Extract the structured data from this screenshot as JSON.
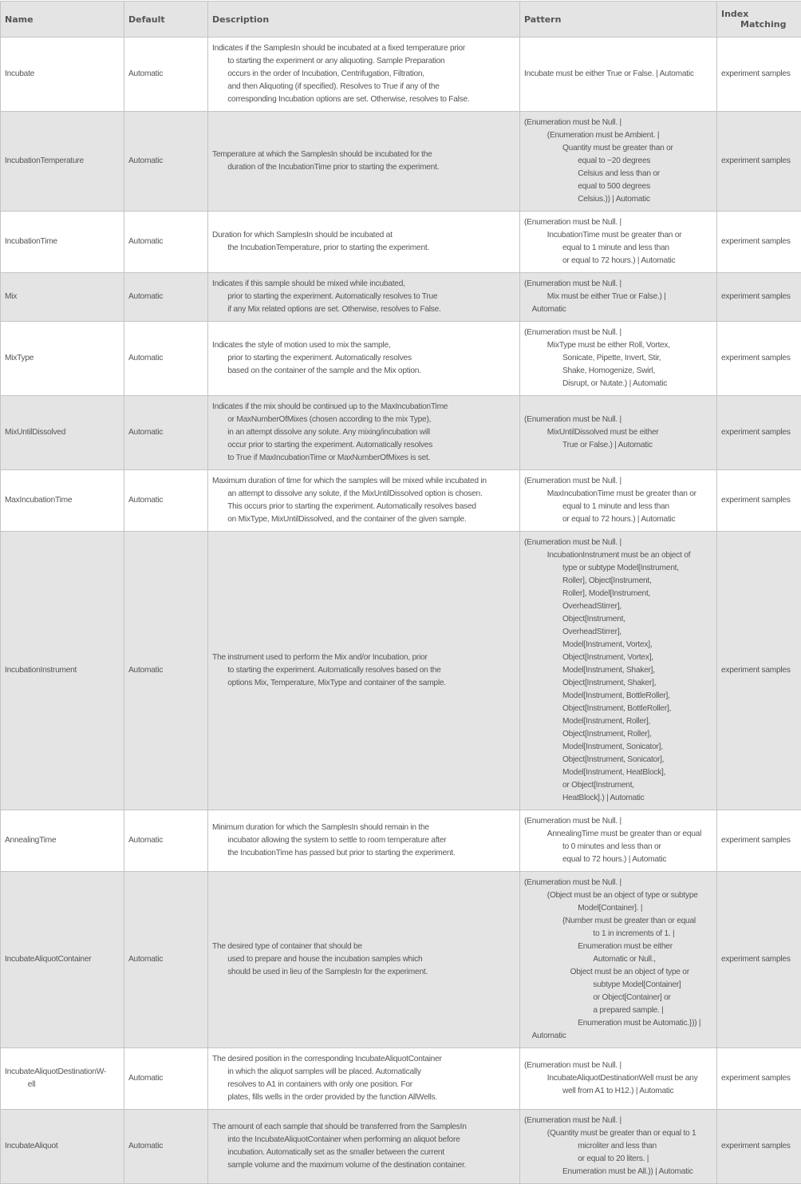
{
  "header": {
    "name": "Name",
    "default": "Default",
    "description": "Description",
    "pattern": "Pattern",
    "index_matching": [
      "Index",
      "Matching"
    ]
  },
  "colors": {
    "header_bg": "#e4e4e4",
    "alt_row_bg": "#e4e4e4",
    "text": "#555555",
    "border": "#c4c4c4"
  },
  "rows": [
    {
      "name": [
        {
          "t": "Incubate",
          "i": 0
        }
      ],
      "default": "Automatic",
      "description": [
        {
          "t": "Indicates if the SamplesIn should be incubated at a fixed temperature prior",
          "i": 0
        },
        {
          "t": "to starting the experiment or any aliquoting. Sample Preparation",
          "i": 2
        },
        {
          "t": "occurs in the order of Incubation, Centrifugation, Filtration,",
          "i": 2
        },
        {
          "t": "and then Aliquoting (if specified).  Resolves to True if any of the",
          "i": 2
        },
        {
          "t": "corresponding Incubation options are set. Otherwise, resolves to False.",
          "i": 2
        }
      ],
      "pattern": [
        {
          "t": "Incubate must be either True or False. | Automatic",
          "i": 0
        }
      ],
      "index_matching": "experiment samples"
    },
    {
      "name": [
        {
          "t": "IncubationTemperature",
          "i": 0
        }
      ],
      "default": "Automatic",
      "description": [
        {
          "t": "Temperature at which the SamplesIn should be incubated for the",
          "i": 0
        },
        {
          "t": "duration of the IncubationTime prior to starting the experiment.",
          "i": 2
        }
      ],
      "pattern": [
        {
          "t": "(Enumeration must be Null. |",
          "i": 0
        },
        {
          "t": "(Enumeration must be Ambient. |",
          "i": 3
        },
        {
          "t": "Quantity must be greater than or",
          "i": 5
        },
        {
          "t": "equal to −20 degrees",
          "i": 7
        },
        {
          "t": "Celsius and less than or",
          "i": 7
        },
        {
          "t": "equal to 500 degrees",
          "i": 7
        },
        {
          "t": "Celsius.)) | Automatic",
          "i": 7
        }
      ],
      "index_matching": "experiment samples"
    },
    {
      "name": [
        {
          "t": "IncubationTime",
          "i": 0
        }
      ],
      "default": "Automatic",
      "description": [
        {
          "t": "Duration for which SamplesIn should be incubated at",
          "i": 0
        },
        {
          "t": "the IncubationTemperature, prior to starting the experiment.",
          "i": 2
        }
      ],
      "pattern": [
        {
          "t": "(Enumeration must be Null. |",
          "i": 0
        },
        {
          "t": "IncubationTime must be greater than or",
          "i": 3
        },
        {
          "t": "equal to 1 minute and less than",
          "i": 5
        },
        {
          "t": "or equal to 72 hours.) | Automatic",
          "i": 5
        }
      ],
      "index_matching": "experiment samples"
    },
    {
      "name": [
        {
          "t": "Mix",
          "i": 0
        }
      ],
      "default": "Automatic",
      "description": [
        {
          "t": "Indicates if this sample should be mixed while incubated,",
          "i": 0
        },
        {
          "t": "prior to starting the experiment.  Automatically resolves to True",
          "i": 2
        },
        {
          "t": "if any Mix related options are set. Otherwise, resolves to False.",
          "i": 2
        }
      ],
      "pattern": [
        {
          "t": "(Enumeration must be Null. |",
          "i": 0
        },
        {
          "t": "Mix must be either True or False.) |",
          "i": 3
        },
        {
          "t": "Automatic",
          "i": 1
        }
      ],
      "index_matching": "experiment samples"
    },
    {
      "name": [
        {
          "t": "MixType",
          "i": 0
        }
      ],
      "default": "Automatic",
      "description": [
        {
          "t": "Indicates the style of motion used to mix the sample,",
          "i": 0
        },
        {
          "t": "prior to starting the experiment.  Automatically resolves",
          "i": 2
        },
        {
          "t": "based on the container of the sample and the Mix option.",
          "i": 2
        }
      ],
      "pattern": [
        {
          "t": "(Enumeration must be Null. |",
          "i": 0
        },
        {
          "t": "MixType must be either Roll, Vortex,",
          "i": 3
        },
        {
          "t": "Sonicate, Pipette, Invert, Stir,",
          "i": 5
        },
        {
          "t": "Shake, Homogenize, Swirl,",
          "i": 5
        },
        {
          "t": "Disrupt, or Nutate.) | Automatic",
          "i": 5
        }
      ],
      "index_matching": "experiment samples"
    },
    {
      "name": [
        {
          "t": "MixUntilDissolved",
          "i": 0
        }
      ],
      "default": "Automatic",
      "description": [
        {
          "t": "Indicates if the mix should be continued up to the MaxIncubationTime",
          "i": 0
        },
        {
          "t": "or MaxNumberOfMixes (chosen according to the mix Type),",
          "i": 2
        },
        {
          "t": "in an attempt dissolve any solute. Any mixing/incubation will",
          "i": 2
        },
        {
          "t": "occur prior to starting the experiment.  Automatically resolves",
          "i": 2
        },
        {
          "t": "to True if MaxIncubationTime or MaxNumberOfMixes is set.",
          "i": 2
        }
      ],
      "pattern": [
        {
          "t": "(Enumeration must be Null. |",
          "i": 0
        },
        {
          "t": "MixUntilDissolved must be either",
          "i": 3
        },
        {
          "t": "True or False.) | Automatic",
          "i": 5
        }
      ],
      "index_matching": "experiment samples"
    },
    {
      "name": [
        {
          "t": "MaxIncubationTime",
          "i": 0
        }
      ],
      "default": "Automatic",
      "description": [
        {
          "t": "Maximum duration of time for which the samples will be mixed while incubated in",
          "i": 0
        },
        {
          "t": "an attempt to dissolve any solute, if the MixUntilDissolved option is chosen.",
          "i": 2
        },
        {
          "t": "This occurs prior to starting the experiment.  Automatically resolves based",
          "i": 2
        },
        {
          "t": "on MixType, MixUntilDissolved, and the container of the given sample.",
          "i": 2
        }
      ],
      "pattern": [
        {
          "t": "(Enumeration must be Null. |",
          "i": 0
        },
        {
          "t": "MaxIncubationTime must be greater than or",
          "i": 3
        },
        {
          "t": "equal to 1 minute and less than",
          "i": 5
        },
        {
          "t": "or equal to 72 hours.) | Automatic",
          "i": 5
        }
      ],
      "index_matching": "experiment samples"
    },
    {
      "name": [
        {
          "t": "IncubationInstrument",
          "i": 0
        }
      ],
      "default": "Automatic",
      "description": [
        {
          "t": "The instrument used to perform the Mix and/or Incubation, prior",
          "i": 0
        },
        {
          "t": "to starting the experiment.  Automatically resolves based on the",
          "i": 2
        },
        {
          "t": "options Mix, Temperature, MixType and container of the sample.",
          "i": 2
        }
      ],
      "pattern": [
        {
          "t": "(Enumeration must be Null. |",
          "i": 0
        },
        {
          "t": "IncubationInstrument must be an object of",
          "i": 3
        },
        {
          "t": "type or subtype Model[Instrument,",
          "i": 5
        },
        {
          "t": "Roller], Object[Instrument,",
          "i": 5
        },
        {
          "t": "Roller], Model[Instrument,",
          "i": 5
        },
        {
          "t": "OverheadStirrer],",
          "i": 5
        },
        {
          "t": "Object[Instrument,",
          "i": 5
        },
        {
          "t": "OverheadStirrer],",
          "i": 5
        },
        {
          "t": "Model[Instrument, Vortex],",
          "i": 5
        },
        {
          "t": "Object[Instrument, Vortex],",
          "i": 5
        },
        {
          "t": "Model[Instrument, Shaker],",
          "i": 5
        },
        {
          "t": "Object[Instrument, Shaker],",
          "i": 5
        },
        {
          "t": "Model[Instrument, BottleRoller],",
          "i": 5
        },
        {
          "t": "Object[Instrument, BottleRoller],",
          "i": 5
        },
        {
          "t": "Model[Instrument, Roller],",
          "i": 5
        },
        {
          "t": "Object[Instrument, Roller],",
          "i": 5
        },
        {
          "t": "Model[Instrument, Sonicator],",
          "i": 5
        },
        {
          "t": "Object[Instrument, Sonicator],",
          "i": 5
        },
        {
          "t": "Model[Instrument, HeatBlock],",
          "i": 5
        },
        {
          "t": "or Object[Instrument,",
          "i": 5
        },
        {
          "t": "HeatBlock].) | Automatic",
          "i": 5
        }
      ],
      "index_matching": "experiment samples"
    },
    {
      "name": [
        {
          "t": "AnnealingTime",
          "i": 0
        }
      ],
      "default": "Automatic",
      "description": [
        {
          "t": "Minimum duration for which the SamplesIn should remain in the",
          "i": 0
        },
        {
          "t": "incubator allowing the system to settle to room temperature after",
          "i": 2
        },
        {
          "t": "the IncubationTime has passed but prior to starting the experiment.",
          "i": 2
        }
      ],
      "pattern": [
        {
          "t": "(Enumeration must be Null. |",
          "i": 0
        },
        {
          "t": "AnnealingTime must be greater than or equal",
          "i": 3
        },
        {
          "t": "to 0 minutes and less than or",
          "i": 5
        },
        {
          "t": "equal to 72 hours.) | Automatic",
          "i": 5
        }
      ],
      "index_matching": "experiment samples"
    },
    {
      "name": [
        {
          "t": "IncubateAliquotContainer",
          "i": 0
        }
      ],
      "default": "Automatic",
      "description": [
        {
          "t": "The desired type of container that should be",
          "i": 0
        },
        {
          "t": "used to prepare and house the incubation samples which",
          "i": 2
        },
        {
          "t": "should be used in lieu of the SamplesIn for the experiment.",
          "i": 2
        }
      ],
      "pattern": [
        {
          "t": "(Enumeration must be Null. |",
          "i": 0
        },
        {
          "t": "(Object must be an object of type or subtype",
          "i": 3
        },
        {
          "t": "Model[Container]. |",
          "i": 7
        },
        {
          "t": "{Number must be greater than or equal",
          "i": 5
        },
        {
          "t": "to 1 in increments of 1. |",
          "i": 9
        },
        {
          "t": "Enumeration must be either",
          "i": 7
        },
        {
          "t": "Automatic or Null.,",
          "i": 9
        },
        {
          "t": "Object must be an object of type or",
          "i": 6
        },
        {
          "t": "subtype Model[Container]",
          "i": 9
        },
        {
          "t": "or Object[Container] or",
          "i": 9
        },
        {
          "t": "a prepared sample. |",
          "i": 9
        },
        {
          "t": "Enumeration must be Automatic.})) |",
          "i": 7
        },
        {
          "t": "Automatic",
          "i": 1
        }
      ],
      "index_matching": "experiment samples"
    },
    {
      "name": [
        {
          "t": "IncubateAliquotDestinationW-",
          "i": 0
        },
        {
          "t": "ell",
          "i": 3
        }
      ],
      "default": "Automatic",
      "description": [
        {
          "t": "The desired position in the corresponding IncubateAliquotContainer",
          "i": 0
        },
        {
          "t": "in which the aliquot samples will be placed.  Automatically",
          "i": 2
        },
        {
          "t": "resolves to A1 in containers with only one position.  For",
          "i": 2
        },
        {
          "t": "plates, fills wells in the order provided by the function AllWells.",
          "i": 2
        }
      ],
      "pattern": [
        {
          "t": "(Enumeration must be Null. |",
          "i": 0
        },
        {
          "t": "IncubateAliquotDestinationWell must be any",
          "i": 3
        },
        {
          "t": "well from A1 to H12.) | Automatic",
          "i": 5
        }
      ],
      "index_matching": "experiment samples"
    },
    {
      "name": [
        {
          "t": "IncubateAliquot",
          "i": 0
        }
      ],
      "default": "Automatic",
      "description": [
        {
          "t": "The amount of each sample that should be transferred from the SamplesIn",
          "i": 0
        },
        {
          "t": "into the IncubateAliquotContainer when performing an aliquot before",
          "i": 2
        },
        {
          "t": "incubation.  Automatically set as the smaller between the current",
          "i": 2
        },
        {
          "t": "sample volume and the maximum volume of the destination container.",
          "i": 2
        }
      ],
      "pattern": [
        {
          "t": "(Enumeration must be Null. |",
          "i": 0
        },
        {
          "t": "(Quantity must be greater than or equal to 1",
          "i": 3
        },
        {
          "t": "microliter and less than",
          "i": 7
        },
        {
          "t": "or equal to 20 liters. |",
          "i": 7
        },
        {
          "t": "Enumeration must be All.)) | Automatic",
          "i": 5
        }
      ],
      "index_matching": "experiment samples"
    }
  ]
}
